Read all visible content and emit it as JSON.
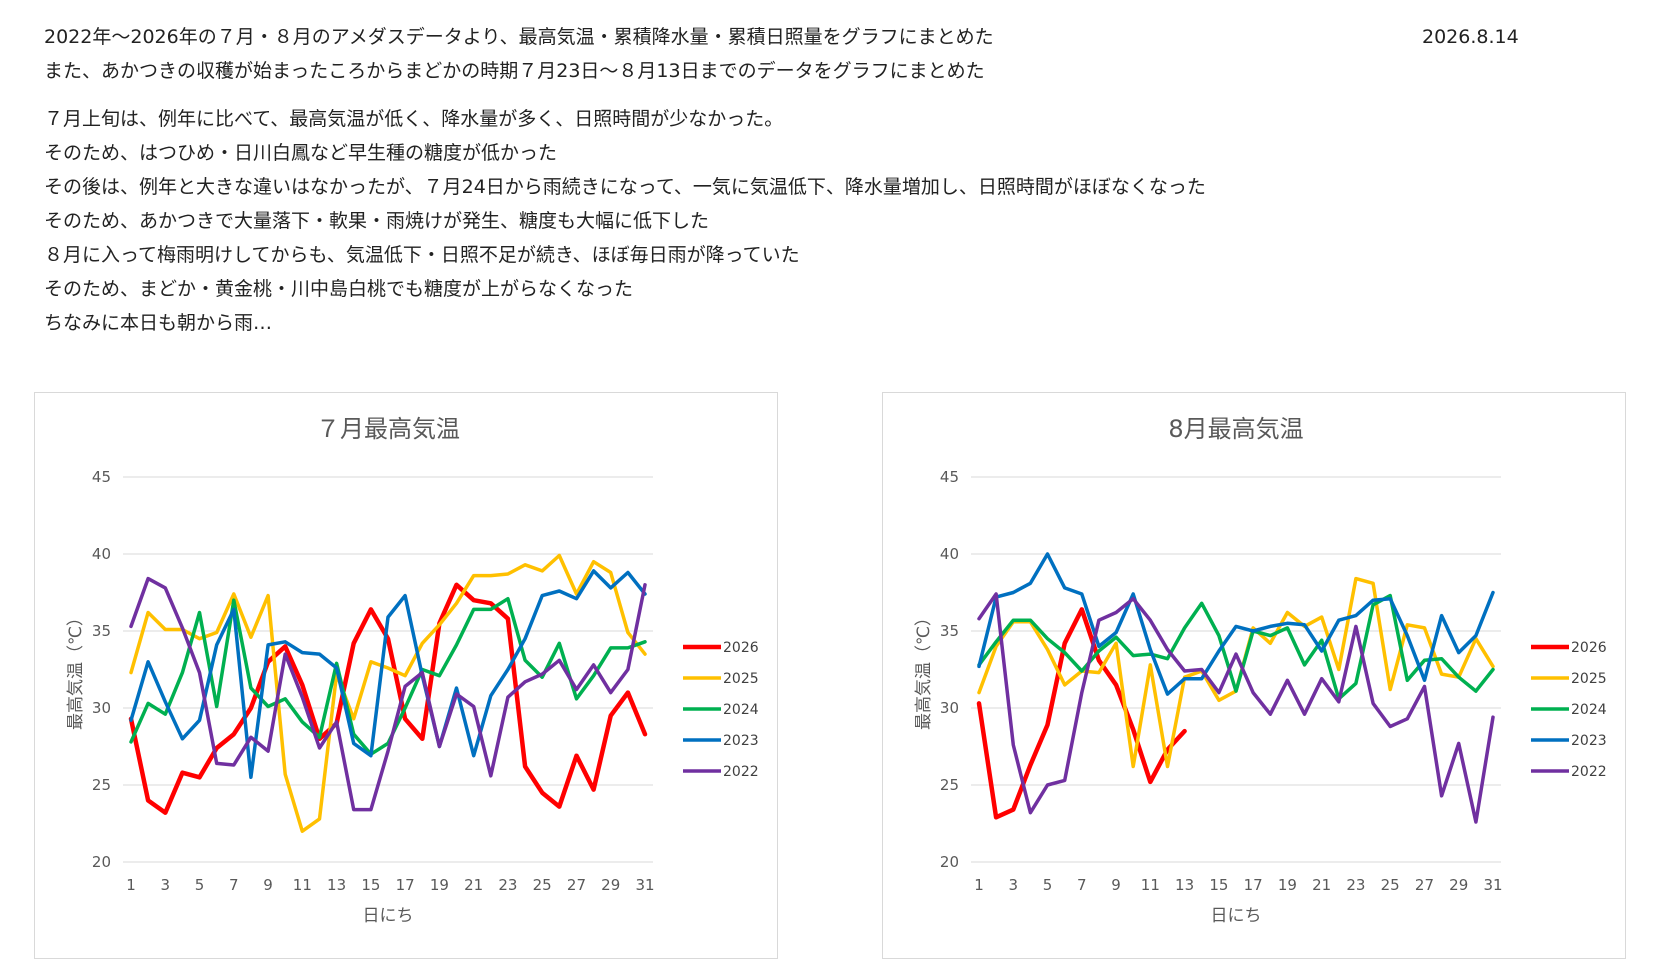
{
  "header": {
    "lines": [
      "2022年～2026年の７月・８月のアメダスデータより、最高気温・累積降水量・累積日照量をグラフにまとめた",
      "また、あかつきの収穫が始まったころからまどかの時期７月23日～８月13日までのデータをグラフにまとめた"
    ],
    "date": "2026.8.14"
  },
  "notes": [
    "７月上旬は、例年に比べて、最高気温が低く、降水量が多く、日照時間が少なかった。",
    "そのため、はつひめ・日川白鳳など早生種の糖度が低かった",
    "その後は、例年と大きな違いはなかったが、７月24日から雨続きになって、一気に気温低下、降水量増加し、日照時間がほぼなくなった",
    "そのため、あかつきで大量落下・軟果・雨焼けが発生、糖度も大幅に低下した",
    "８月に入って梅雨明けしてからも、気温低下・日照不足が続き、ほぼ毎日雨が降っていた",
    "そのため、まどか・黄金桃・川中島白桃でも糖度が上がらなくなった",
    "ちなみに本日も朝から雨…"
  ],
  "chart_data": [
    {
      "type": "line",
      "title": "７月最高気温",
      "xlabel": "日にち",
      "ylabel": "最高気温（℃）",
      "ylim": [
        20,
        45
      ],
      "yticks": [
        20,
        25,
        30,
        35,
        40,
        45
      ],
      "x": [
        1,
        2,
        3,
        4,
        5,
        6,
        7,
        8,
        9,
        10,
        11,
        12,
        13,
        14,
        15,
        16,
        17,
        18,
        19,
        20,
        21,
        22,
        23,
        24,
        25,
        26,
        27,
        28,
        29,
        30,
        31
      ],
      "xtick_labels": [
        1,
        3,
        5,
        7,
        9,
        11,
        13,
        15,
        17,
        19,
        21,
        23,
        25,
        27,
        29,
        31
      ],
      "grid": true,
      "legend": "right",
      "series": [
        {
          "name": "2026",
          "color": "#ff0000",
          "values": [
            29.3,
            24.0,
            23.2,
            25.8,
            25.5,
            27.4,
            28.3,
            30.0,
            33.0,
            34.0,
            31.5,
            28.0,
            29.0,
            34.2,
            36.4,
            34.5,
            29.3,
            28.0,
            35.5,
            38.0,
            37.0,
            36.8,
            35.8,
            26.2,
            24.5,
            23.6,
            26.9,
            24.7,
            29.5,
            31.0,
            28.3
          ]
        },
        {
          "name": "2025",
          "color": "#ffc000",
          "values": [
            32.3,
            36.2,
            35.1,
            35.1,
            34.5,
            34.9,
            37.4,
            34.6,
            37.3,
            25.7,
            22.0,
            22.8,
            32.2,
            29.3,
            33.0,
            32.6,
            32.1,
            34.2,
            35.4,
            36.8,
            38.6,
            38.6,
            38.7,
            39.3,
            38.9,
            39.9,
            37.4,
            39.5,
            38.8,
            34.9,
            33.5
          ]
        },
        {
          "name": "2024",
          "color": "#00b050",
          "values": [
            27.8,
            30.3,
            29.6,
            32.3,
            36.2,
            30.1,
            37.0,
            31.3,
            30.1,
            30.6,
            29.1,
            28.1,
            32.9,
            28.3,
            27.0,
            27.7,
            30.0,
            32.5,
            32.1,
            34.1,
            36.4,
            36.4,
            37.1,
            33.1,
            32.0,
            34.2,
            30.6,
            32.1,
            33.9,
            33.9,
            34.3
          ]
        },
        {
          "name": "2023",
          "color": "#0070c0",
          "values": [
            29.2,
            33.0,
            30.4,
            28.0,
            29.2,
            34.1,
            36.4,
            25.5,
            34.1,
            34.3,
            33.6,
            33.5,
            32.6,
            27.7,
            26.9,
            35.9,
            37.3,
            32.1,
            27.5,
            31.3,
            26.9,
            30.8,
            32.5,
            34.5,
            37.3,
            37.6,
            37.1,
            38.9,
            37.8,
            38.8,
            37.4
          ]
        },
        {
          "name": "2022",
          "color": "#7030a0",
          "values": [
            35.3,
            38.4,
            37.8,
            35.2,
            32.3,
            26.4,
            26.3,
            28.1,
            27.2,
            33.5,
            30.7,
            27.4,
            29.1,
            23.4,
            23.4,
            27.2,
            31.4,
            32.3,
            27.5,
            30.9,
            30.1,
            25.6,
            30.7,
            31.7,
            32.2,
            33.1,
            31.2,
            32.8,
            31.0,
            32.5,
            38.0
          ]
        }
      ]
    },
    {
      "type": "line",
      "title": "8月最高気温",
      "xlabel": "日にち",
      "ylabel": "最高気温（℃）",
      "ylim": [
        20,
        45
      ],
      "yticks": [
        20,
        25,
        30,
        35,
        40,
        45
      ],
      "x": [
        1,
        2,
        3,
        4,
        5,
        6,
        7,
        8,
        9,
        10,
        11,
        12,
        13,
        14,
        15,
        16,
        17,
        18,
        19,
        20,
        21,
        22,
        23,
        24,
        25,
        26,
        27,
        28,
        29,
        30,
        31
      ],
      "xtick_labels": [
        1,
        3,
        5,
        7,
        9,
        11,
        13,
        15,
        17,
        19,
        21,
        23,
        25,
        27,
        29,
        31
      ],
      "grid": true,
      "legend": "right",
      "series": [
        {
          "name": "2026",
          "color": "#ff0000",
          "values": [
            30.3,
            22.9,
            23.4,
            26.3,
            28.9,
            34.2,
            36.4,
            33.1,
            31.5,
            28.6,
            25.2,
            27.3,
            28.5,
            null,
            null,
            null,
            null,
            null,
            null,
            null,
            null,
            null,
            null,
            null,
            null,
            null,
            null,
            null,
            null,
            null,
            null
          ]
        },
        {
          "name": "2025",
          "color": "#ffc000",
          "values": [
            31.0,
            34.0,
            35.6,
            35.6,
            33.8,
            31.5,
            32.4,
            32.3,
            34.2,
            26.2,
            32.8,
            26.2,
            32.0,
            32.4,
            30.5,
            31.1,
            35.2,
            34.2,
            36.2,
            35.3,
            35.9,
            32.5,
            38.4,
            38.1,
            31.2,
            35.4,
            35.2,
            32.2,
            32.0,
            34.5,
            32.7
          ]
        },
        {
          "name": "2024",
          "color": "#00b050",
          "values": [
            32.8,
            34.3,
            35.7,
            35.7,
            34.5,
            33.6,
            32.4,
            33.7,
            34.6,
            33.4,
            33.5,
            33.2,
            35.2,
            36.8,
            34.7,
            31.1,
            35.0,
            34.7,
            35.2,
            32.8,
            34.4,
            30.6,
            31.6,
            36.7,
            37.3,
            31.8,
            33.1,
            33.2,
            32.0,
            31.1,
            32.5
          ]
        },
        {
          "name": "2023",
          "color": "#0070c0",
          "values": [
            32.7,
            37.2,
            37.5,
            38.1,
            40.0,
            37.8,
            37.4,
            34.0,
            34.9,
            37.4,
            33.8,
            30.9,
            31.9,
            31.9,
            33.7,
            35.3,
            35.0,
            35.3,
            35.5,
            35.4,
            33.7,
            35.7,
            36.0,
            37.0,
            37.1,
            34.7,
            31.8,
            36.0,
            33.6,
            34.7,
            37.5
          ]
        },
        {
          "name": "2022",
          "color": "#7030a0",
          "values": [
            35.8,
            37.4,
            27.6,
            23.2,
            25.0,
            25.3,
            31.0,
            35.7,
            36.2,
            37.1,
            35.7,
            33.8,
            32.4,
            32.5,
            31.0,
            33.5,
            31.0,
            29.6,
            31.8,
            29.6,
            31.9,
            30.4,
            35.3,
            30.3,
            28.8,
            29.3,
            31.4,
            24.3,
            27.7,
            22.6,
            29.4
          ]
        }
      ]
    }
  ]
}
